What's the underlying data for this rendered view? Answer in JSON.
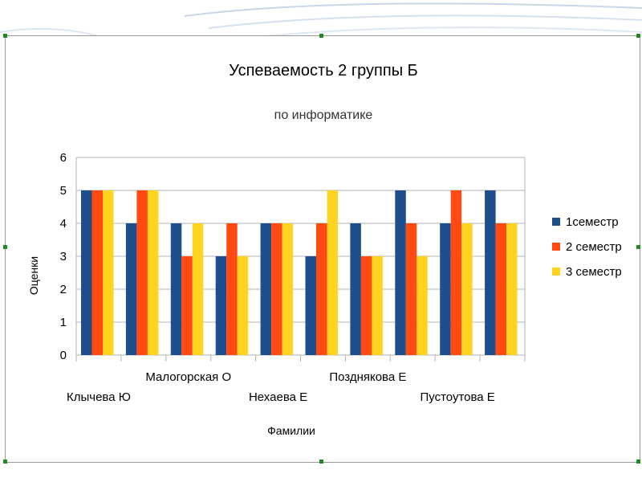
{
  "chart_data": {
    "type": "bar",
    "title": "Успеваемость 2 группы Б",
    "subtitle": "по информатике",
    "xlabel": "Фамилии",
    "ylabel": "Оценки",
    "ylim": [
      0,
      6
    ],
    "yticks": [
      "0",
      "1",
      "2",
      "3",
      "4",
      "5",
      "6"
    ],
    "grid": true,
    "legend_position": "right",
    "categories": [
      "Клычева Ю",
      "",
      "Малогорская О",
      "",
      "Нехаева Е",
      "",
      "Позднякова Е",
      "",
      "Пустоутова Е",
      ""
    ],
    "series": [
      {
        "name": "1семестр",
        "color": "#1f4e8c",
        "values": [
          5,
          4,
          4,
          3,
          4,
          3,
          4,
          5,
          4,
          5
        ]
      },
      {
        "name": "2 семестр",
        "color": "#ff4a12",
        "values": [
          5,
          5,
          3,
          4,
          4,
          4,
          3,
          4,
          5,
          4
        ]
      },
      {
        "name": "3 семестр",
        "color": "#ffd320",
        "values": [
          5,
          5,
          4,
          3,
          4,
          5,
          3,
          3,
          4,
          4
        ]
      }
    ]
  }
}
